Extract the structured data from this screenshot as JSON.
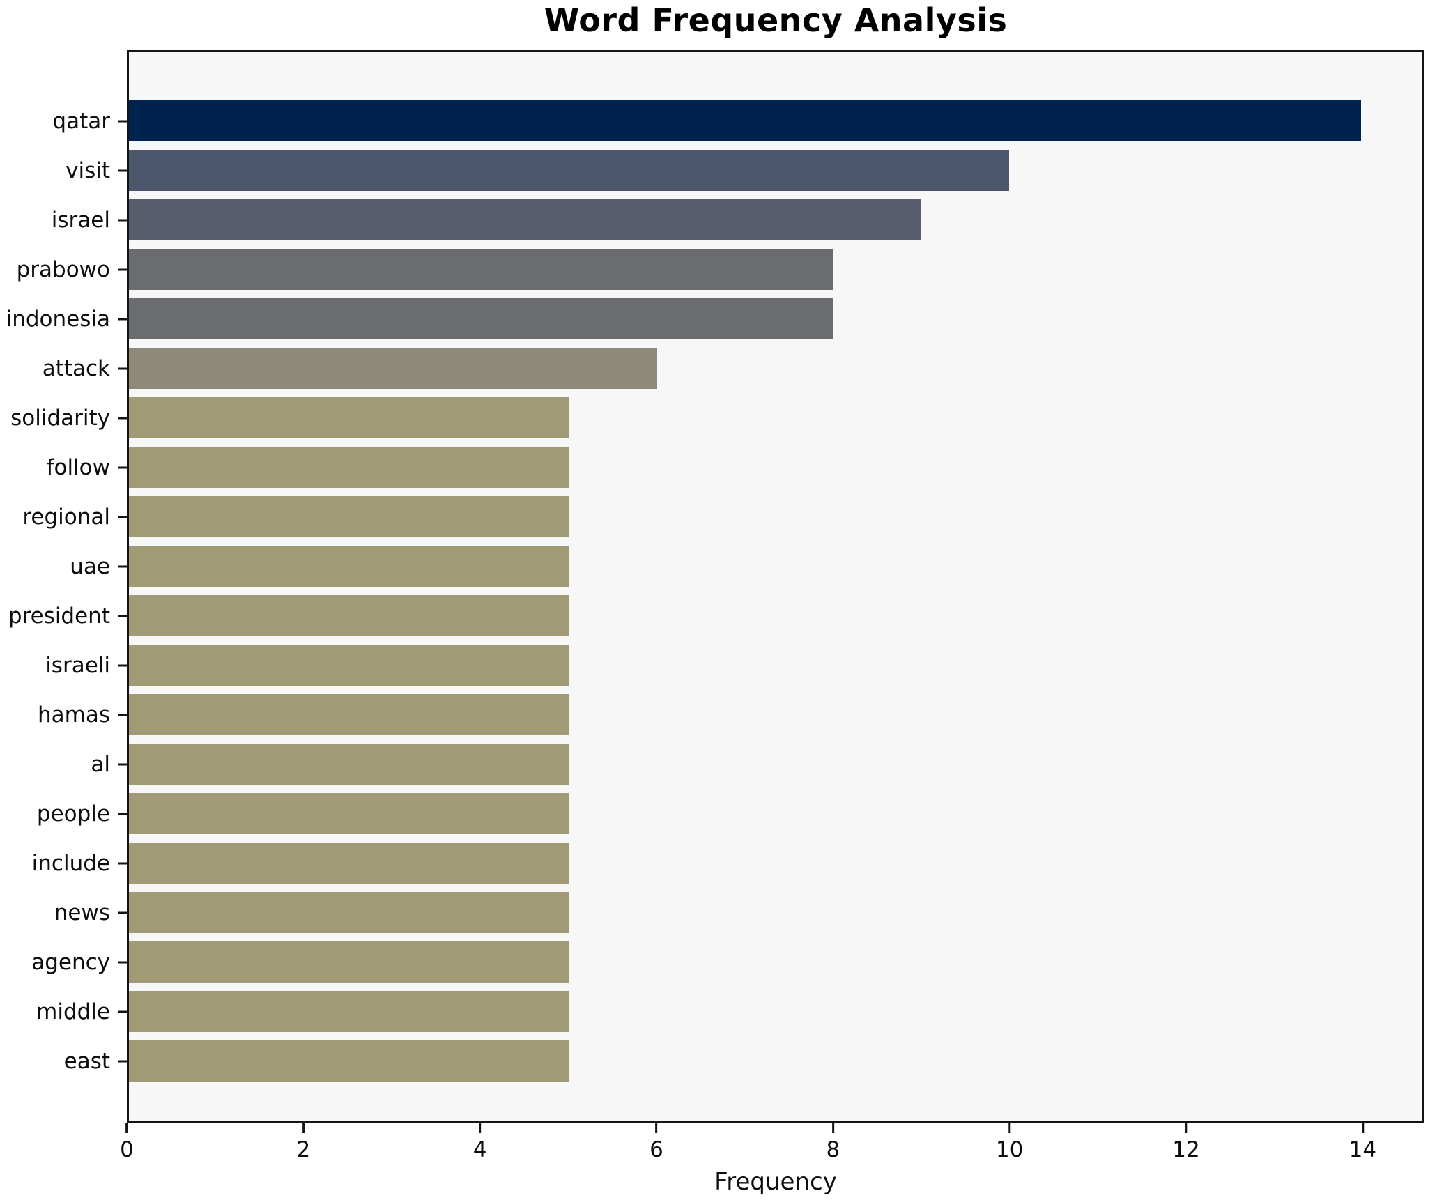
{
  "chart_data": {
    "type": "bar",
    "orientation": "horizontal",
    "title": "Word Frequency Analysis",
    "xlabel": "Frequency",
    "ylabel": "",
    "categories": [
      "qatar",
      "visit",
      "israel",
      "prabowo",
      "indonesia",
      "attack",
      "solidarity",
      "follow",
      "regional",
      "uae",
      "president",
      "israeli",
      "hamas",
      "al",
      "people",
      "include",
      "news",
      "agency",
      "middle",
      "east"
    ],
    "values": [
      14,
      10,
      9,
      8,
      8,
      6,
      5,
      5,
      5,
      5,
      5,
      5,
      5,
      5,
      5,
      5,
      5,
      5,
      5,
      5
    ],
    "bar_colors": [
      "#00224e",
      "#4c566c",
      "#575d6d",
      "#6b6c70",
      "#6b6c70",
      "#8e8978",
      "#a09a77",
      "#a09a77",
      "#a09a77",
      "#a09a77",
      "#a09a77",
      "#a09a77",
      "#a09a77",
      "#a09a77",
      "#a09a77",
      "#a09a77",
      "#a09a77",
      "#a09a77",
      "#a09a77",
      "#a09a77"
    ],
    "xticks": [
      0,
      2,
      4,
      6,
      8,
      10,
      12,
      14
    ],
    "xlim": [
      0,
      14.7
    ],
    "grid": false,
    "legend": null,
    "plot_background": "#f7f7f7",
    "figure_background": "#ffffff",
    "spine_color": "#141414"
  }
}
